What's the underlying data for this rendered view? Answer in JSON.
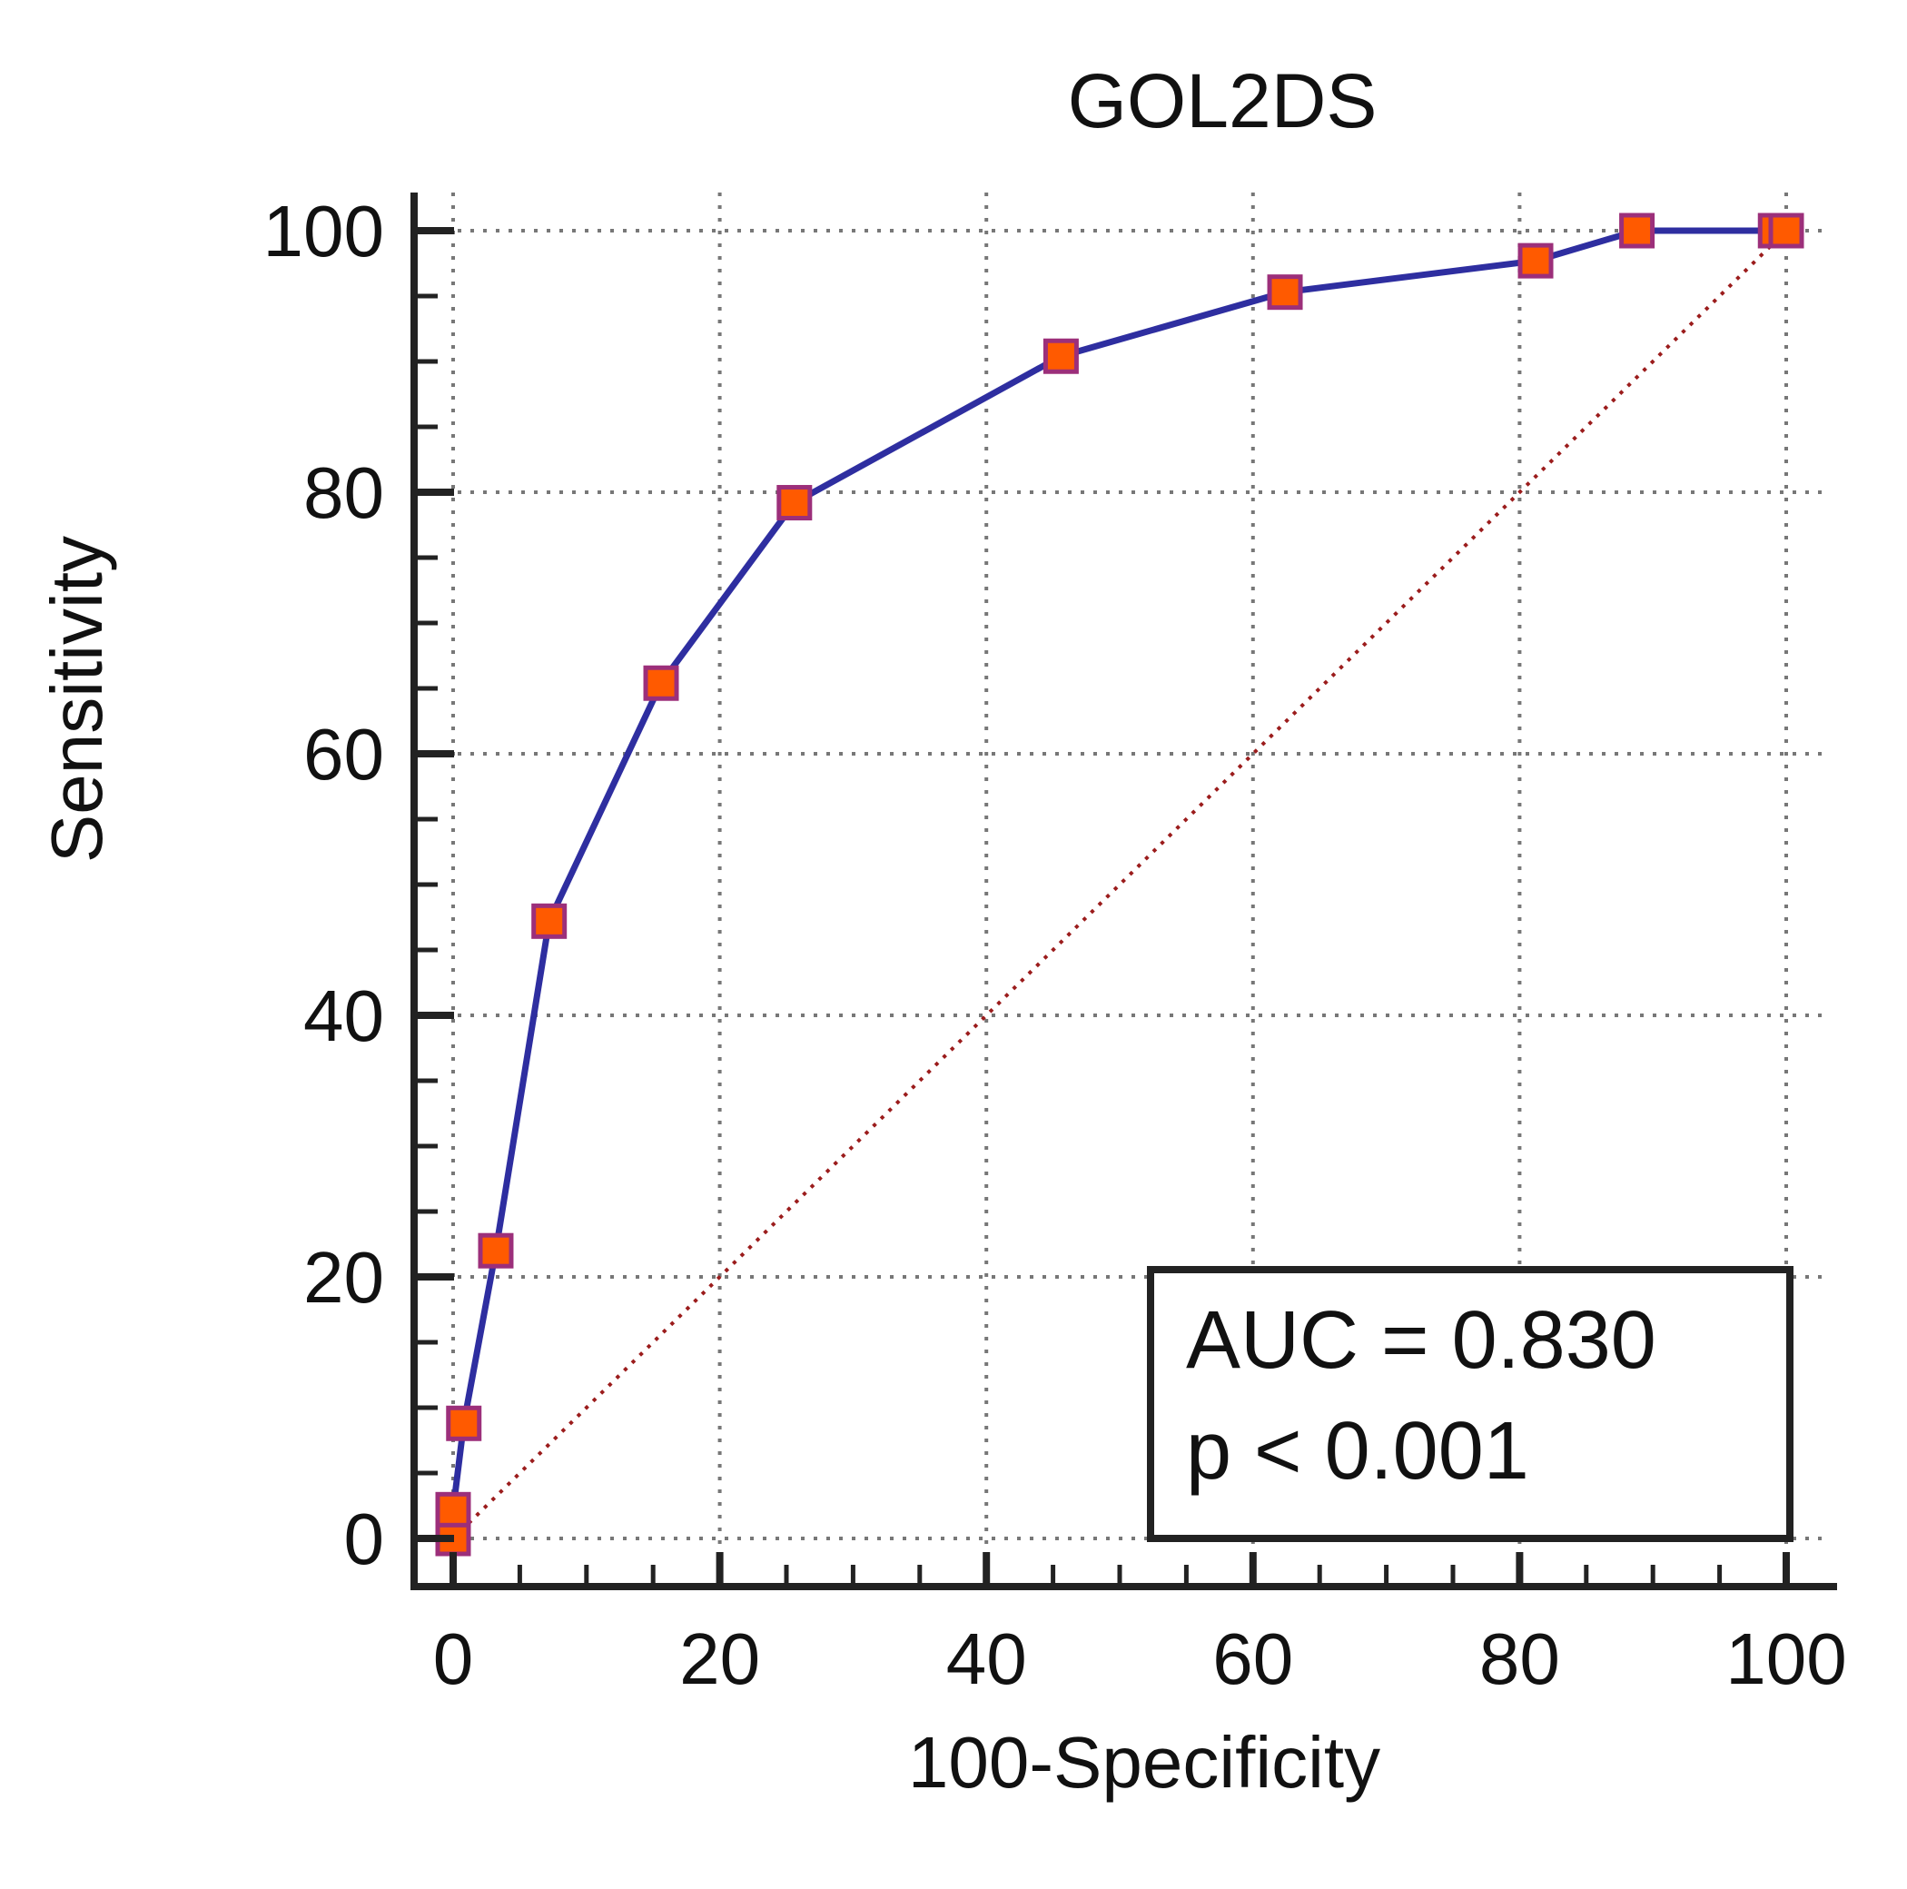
{
  "chart_data": {
    "type": "line",
    "title": "GOL2DS",
    "xlabel": "100-Specificity",
    "ylabel": "Sensitivity",
    "xlim": [
      0,
      100
    ],
    "ylim": [
      0,
      100
    ],
    "xticks": [
      0,
      20,
      40,
      60,
      80,
      100
    ],
    "yticks": [
      0,
      20,
      40,
      60,
      80,
      100
    ],
    "x_tick_labels": [
      "0",
      "20",
      "40",
      "60",
      "80",
      "100"
    ],
    "y_tick_labels": [
      "0",
      "20",
      "40",
      "60",
      "80",
      "100"
    ],
    "grid": true,
    "series": [
      {
        "name": "ROC curve",
        "color": "#2e2ea0",
        "marker_fill": "#ff5a00",
        "marker_stroke": "#9c2f7a",
        "x": [
          0,
          0,
          0.8,
          3.2,
          7.2,
          15.6,
          25.6,
          45.6,
          62.4,
          81.2,
          88.8,
          99.2,
          100
        ],
        "y": [
          0,
          2.2,
          8.8,
          22.0,
          47.2,
          65.4,
          79.2,
          90.4,
          95.3,
          97.7,
          100,
          100,
          100
        ]
      },
      {
        "name": "Reference line",
        "color": "#9b1c1c",
        "x": [
          0,
          100
        ],
        "y": [
          0,
          100
        ]
      }
    ],
    "annotation": {
      "auc": "AUC = 0.830",
      "p": "p < 0.001"
    }
  }
}
